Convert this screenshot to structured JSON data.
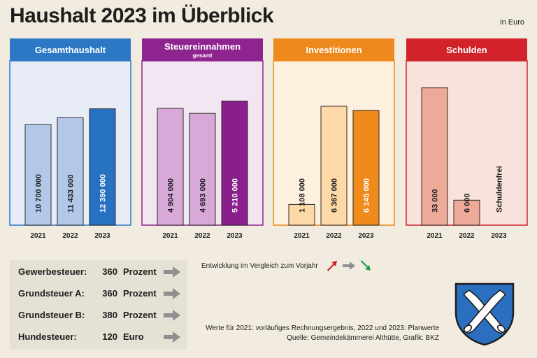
{
  "title": "Haushalt 2023 im Überblick",
  "unit_note": "in Euro",
  "chart_data": [
    {
      "type": "bar",
      "title": "Gesamthaushalt",
      "subtitle": "",
      "categories": [
        "2021",
        "2022",
        "2023"
      ],
      "values": [
        10700000,
        11433000,
        12390000
      ],
      "value_labels": [
        "10 700 000",
        "11 433 000",
        "12 390 000"
      ],
      "ylim": [
        0,
        17500000
      ],
      "colors": {
        "header": "#2d78c5",
        "panel": "#e7ecf7",
        "bar_light": "#b3c7e8",
        "bar_dark": "#2671c1",
        "label_light": "#1e1e1e",
        "label_dark": "#ffffff"
      }
    },
    {
      "type": "bar",
      "title": "Steuereinnahmen",
      "subtitle": "gesamt",
      "categories": [
        "2021",
        "2022",
        "2023"
      ],
      "values": [
        4904000,
        4693000,
        5210000
      ],
      "value_labels": [
        "4 904 000",
        "4 693 000",
        "5 210 000"
      ],
      "ylim": [
        0,
        6900000
      ],
      "colors": {
        "header": "#8e248e",
        "panel": "#f1e6f1",
        "bar_light": "#d7a8d8",
        "bar_dark": "#8a1e8a",
        "label_light": "#1e1e1e",
        "label_dark": "#ffffff"
      }
    },
    {
      "type": "bar",
      "title": "Investitionen",
      "subtitle": "",
      "categories": [
        "2021",
        "2022",
        "2023"
      ],
      "values": [
        1108000,
        6367000,
        6145000
      ],
      "value_labels": [
        "1 108 000",
        "6 367 000",
        "6 145 000"
      ],
      "ylim": [
        0,
        8800000
      ],
      "colors": {
        "header": "#ee8a1d",
        "panel": "#fdf0df",
        "bar_light": "#fcd9a6",
        "bar_dark": "#f08a1a",
        "label_light": "#1e1e1e",
        "label_dark": "#ffffff"
      }
    },
    {
      "type": "bar",
      "title": "Schulden",
      "subtitle": "",
      "categories": [
        "2021",
        "2022",
        "2023"
      ],
      "values": [
        33000,
        6000,
        0
      ],
      "value_labels": [
        "33 000",
        "6 000",
        "Schuldenfrei"
      ],
      "ylim": [
        0,
        39500
      ],
      "colors": {
        "header": "#d2232a",
        "panel": "#f9e1dc",
        "bar_light": "#eeaa98",
        "bar_dark": "#eeaa98",
        "label_light": "#1e1e1e",
        "label_dark": "#1e1e1e"
      }
    }
  ],
  "taxes": [
    {
      "name": "Gewerbesteuer:",
      "value": "360",
      "unit": "Prozent",
      "trend": "same"
    },
    {
      "name": "Grundsteuer A:",
      "value": "360",
      "unit": "Prozent",
      "trend": "same"
    },
    {
      "name": "Grundsteuer B:",
      "value": "380",
      "unit": "Prozent",
      "trend": "same"
    },
    {
      "name": "Hundesteuer:",
      "value": "120",
      "unit": "Euro",
      "trend": "same"
    }
  ],
  "legend": {
    "text": "Entwicklung im Vergleich zum Vorjahr",
    "colors": {
      "up": "#c8242b",
      "same": "#8f8f8f",
      "down": "#1c9a3e"
    }
  },
  "footnote": {
    "line1": "Werte für 2021: vorläufiges Rechnungsergebnis, 2022 und 2023: Planwerte",
    "line2": "Quelle: Gemeindekämmerei Althütte, Grafik: BKZ"
  },
  "crest": {
    "name": "coat-of-arms",
    "colors": {
      "field": "#2b6fc0",
      "charge": "#ffffff"
    }
  }
}
